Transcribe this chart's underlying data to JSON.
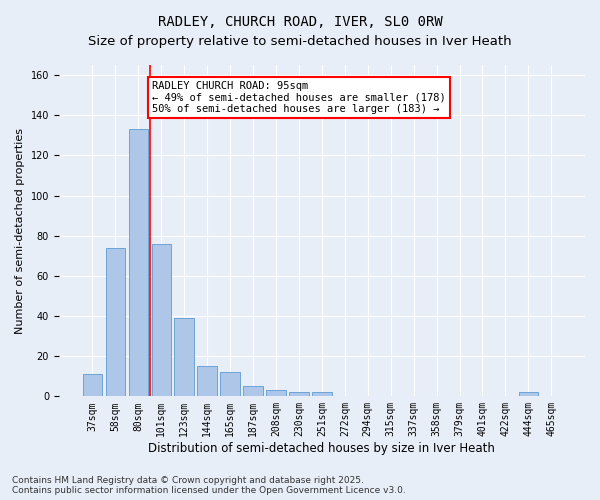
{
  "title": "RADLEY, CHURCH ROAD, IVER, SL0 0RW",
  "subtitle": "Size of property relative to semi-detached houses in Iver Heath",
  "xlabel": "Distribution of semi-detached houses by size in Iver Heath",
  "ylabel": "Number of semi-detached properties",
  "categories": [
    "37sqm",
    "58sqm",
    "80sqm",
    "101sqm",
    "123sqm",
    "144sqm",
    "165sqm",
    "187sqm",
    "208sqm",
    "230sqm",
    "251sqm",
    "272sqm",
    "294sqm",
    "315sqm",
    "337sqm",
    "358sqm",
    "379sqm",
    "401sqm",
    "422sqm",
    "444sqm",
    "465sqm"
  ],
  "values": [
    11,
    74,
    133,
    76,
    39,
    15,
    12,
    5,
    3,
    2,
    2,
    0,
    0,
    0,
    0,
    0,
    0,
    0,
    0,
    2,
    0
  ],
  "bar_color": "#aec6e8",
  "bar_edge_color": "#5b9bd5",
  "vline_x": 2.5,
  "vline_color": "red",
  "annotation_line1": "RADLEY CHURCH ROAD: 95sqm",
  "annotation_line2": "← 49% of semi-detached houses are smaller (178)",
  "annotation_line3": "50% of semi-detached houses are larger (183) →",
  "annotation_box_color": "white",
  "annotation_box_edge": "red",
  "ylim": [
    0,
    165
  ],
  "yticks": [
    0,
    20,
    40,
    60,
    80,
    100,
    120,
    140,
    160
  ],
  "background_color": "#e8eef8",
  "plot_background": "#e8eef8",
  "footer": "Contains HM Land Registry data © Crown copyright and database right 2025.\nContains public sector information licensed under the Open Government Licence v3.0.",
  "title_fontsize": 10,
  "subtitle_fontsize": 9.5,
  "xlabel_fontsize": 8.5,
  "ylabel_fontsize": 8,
  "tick_fontsize": 7,
  "annotation_fontsize": 7.5,
  "footer_fontsize": 6.5
}
